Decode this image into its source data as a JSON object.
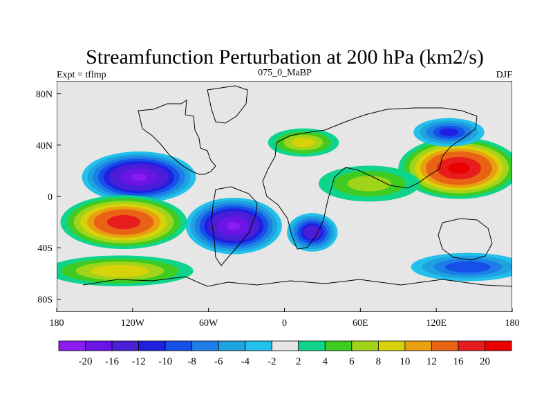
{
  "chart_data": {
    "type": "heatmap",
    "title": "Streamfunction Perturbation at 200 hPa (km2/s)",
    "left_subtitle": "Expt = tflmp",
    "center_subtitle": "075_0_MaBP",
    "right_subtitle": "DJF",
    "xlim": [
      -180,
      180
    ],
    "ylim": [
      -90,
      90
    ],
    "x_ticks": [
      {
        "value": -180,
        "label": "180"
      },
      {
        "value": -120,
        "label": "120W"
      },
      {
        "value": -60,
        "label": "60W"
      },
      {
        "value": 0,
        "label": "0"
      },
      {
        "value": 60,
        "label": "60E"
      },
      {
        "value": 120,
        "label": "120E"
      },
      {
        "value": 180,
        "label": "180"
      }
    ],
    "y_ticks": [
      {
        "value": 80,
        "label": "80N"
      },
      {
        "value": 40,
        "label": "40N"
      },
      {
        "value": 0,
        "label": "0"
      },
      {
        "value": -40,
        "label": "40S"
      },
      {
        "value": -80,
        "label": "80S"
      }
    ],
    "levels": [
      -20,
      -16,
      -12,
      -10,
      -8,
      -6,
      -4,
      -2,
      2,
      4,
      6,
      8,
      10,
      12,
      16,
      20
    ],
    "colorbar_labels": [
      "-20",
      "-16",
      "-12",
      "-10",
      "-8",
      "-6",
      "-4",
      "-2",
      "2",
      "4",
      "6",
      "8",
      "10",
      "12",
      "16",
      "20"
    ],
    "colors": [
      "#8a1cf0",
      "#6a14e6",
      "#4a1ed6",
      "#2020e0",
      "#1650e8",
      "#1c7ee6",
      "#1ea2e0",
      "#22c0ea",
      "#e6e6e6",
      "#10d48a",
      "#3fcc22",
      "#a0d41a",
      "#d8d20a",
      "#e8a010",
      "#e86414",
      "#e81c1c",
      "#e80000"
    ],
    "features": [
      {
        "name": "cyclone-east-pacific-north",
        "lon": -115,
        "lat": 15,
        "value": -20,
        "rx": 45,
        "ry": 20
      },
      {
        "name": "cyclone-south-america",
        "lon": -40,
        "lat": -23,
        "value": -20,
        "rx": 38,
        "ry": 22
      },
      {
        "name": "cyclone-south-africa",
        "lon": 22,
        "lat": -28,
        "value": -14,
        "rx": 20,
        "ry": 15
      },
      {
        "name": "anticyclone-west-pacific",
        "lon": 138,
        "lat": 22,
        "value": 21,
        "rx": 48,
        "ry": 24
      },
      {
        "name": "anticyclone-south-pacific",
        "lon": -127,
        "lat": -20,
        "value": 18,
        "rx": 50,
        "ry": 21
      },
      {
        "name": "ridge-southern-ocean-pacific",
        "lon": -130,
        "lat": -58,
        "value": 9,
        "rx": 58,
        "ry": 12
      },
      {
        "name": "ridge-north-africa",
        "lon": 15,
        "lat": 42,
        "value": 8,
        "rx": 28,
        "ry": 11
      },
      {
        "name": "trough-north-pacific",
        "lon": 130,
        "lat": 50,
        "value": -10,
        "rx": 28,
        "ry": 11
      },
      {
        "name": "ridge-indian-ocean",
        "lon": 67,
        "lat": 10,
        "value": 6,
        "rx": 40,
        "ry": 14
      },
      {
        "name": "trough-southern-indian",
        "lon": 145,
        "lat": -55,
        "value": -9,
        "rx": 45,
        "ry": 11
      }
    ]
  }
}
